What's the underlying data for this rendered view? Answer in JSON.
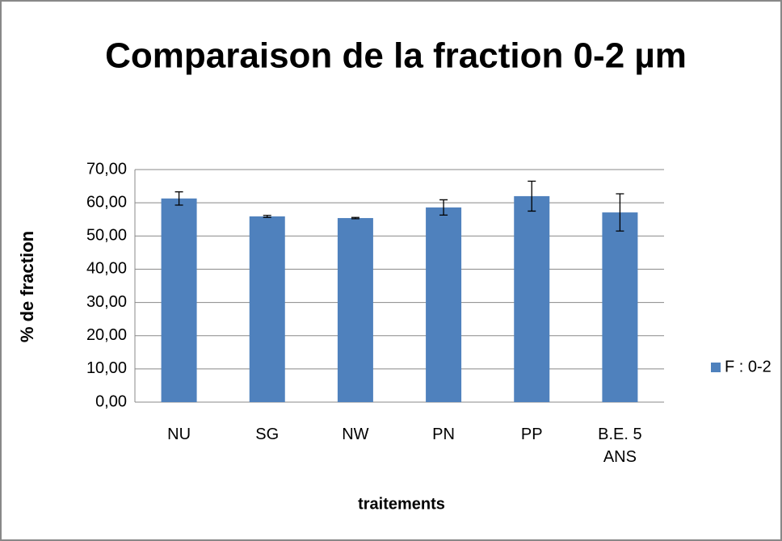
{
  "chart_data": {
    "type": "bar",
    "title": "Comparaison de la fraction 0-2 µm",
    "xlabel": "traitements",
    "ylabel": "% de fraction",
    "categories": [
      "NU",
      "SG",
      "NW",
      "PN",
      "PP",
      "B.E. 5 ANS"
    ],
    "series": [
      {
        "name": "F : 0-2",
        "color": "#4f81bd",
        "values": [
          61.3,
          55.9,
          55.4,
          58.6,
          62.0,
          57.1
        ],
        "errors": [
          2.0,
          0.3,
          0.2,
          2.3,
          4.5,
          5.6
        ]
      }
    ],
    "ylim": [
      0,
      70
    ],
    "yticks": [
      {
        "value": 0,
        "label": "0,00"
      },
      {
        "value": 10,
        "label": "10,00"
      },
      {
        "value": 20,
        "label": "20,00"
      },
      {
        "value": 30,
        "label": "30,00"
      },
      {
        "value": 40,
        "label": "40,00"
      },
      {
        "value": 50,
        "label": "50,00"
      },
      {
        "value": 60,
        "label": "60,00"
      },
      {
        "value": 70,
        "label": "70,00"
      }
    ],
    "grid": true,
    "legend": "right"
  }
}
